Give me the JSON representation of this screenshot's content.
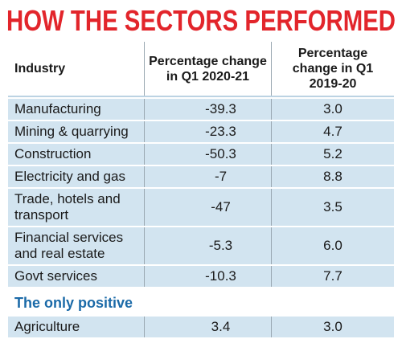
{
  "title": "HOW THE SECTORS PERFORMED",
  "table": {
    "header": [
      "Industry",
      "Percentage change in Q1 2020-21",
      "Percentage change in Q1 2019-20"
    ],
    "rows": [
      [
        "Manufacturing",
        "-39.3",
        "3.0"
      ],
      [
        "Mining & quarrying",
        "-23.3",
        "4.7"
      ],
      [
        "Construction",
        "-50.3",
        "5.2"
      ],
      [
        "Electricity and gas",
        "-7",
        "8.8"
      ],
      [
        "Trade, hotels and transport",
        "-47",
        "3.5"
      ],
      [
        "Financial services and real estate",
        "-5.3",
        "6.0"
      ],
      [
        "Govt services",
        "-10.3",
        "7.7"
      ]
    ]
  },
  "section": {
    "label": "The only positive",
    "rows": [
      [
        "Agriculture",
        "3.4",
        "3.0"
      ]
    ]
  }
}
